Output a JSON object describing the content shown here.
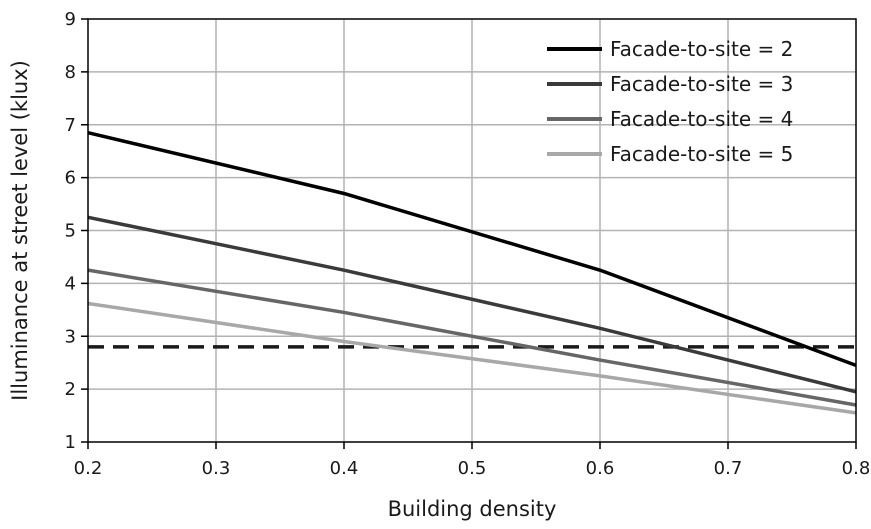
{
  "chart_data": {
    "type": "line",
    "title": "",
    "xlabel": "Building density",
    "ylabel": "Illuminance at street level (klux)",
    "xlim": [
      0.2,
      0.8
    ],
    "ylim": [
      1,
      9
    ],
    "x_ticks": [
      "0.2",
      "0.3",
      "0.4",
      "0.5",
      "0.6",
      "0.7",
      "0.8"
    ],
    "y_ticks": [
      "1",
      "2",
      "3",
      "4",
      "5",
      "6",
      "7",
      "8",
      "9"
    ],
    "grid": true,
    "legend_position": "top-right",
    "x": [
      0.2,
      0.4,
      0.6,
      0.8
    ],
    "series": [
      {
        "name": "Facade-to-site = 2",
        "color": "#000000",
        "values": [
          6.85,
          5.7,
          4.25,
          2.45
        ]
      },
      {
        "name": "Facade-to-site = 3",
        "color": "#3a3a3a",
        "values": [
          5.25,
          4.25,
          3.15,
          1.95
        ]
      },
      {
        "name": "Facade-to-site = 4",
        "color": "#666666",
        "values": [
          4.25,
          3.45,
          2.55,
          1.7
        ]
      },
      {
        "name": "Facade-to-site = 5",
        "color": "#a8a8a8",
        "values": [
          3.62,
          2.9,
          2.25,
          1.55
        ]
      }
    ],
    "reference_line": {
      "y": 2.8,
      "style": "dashed",
      "color": "#1a1a1a"
    }
  }
}
